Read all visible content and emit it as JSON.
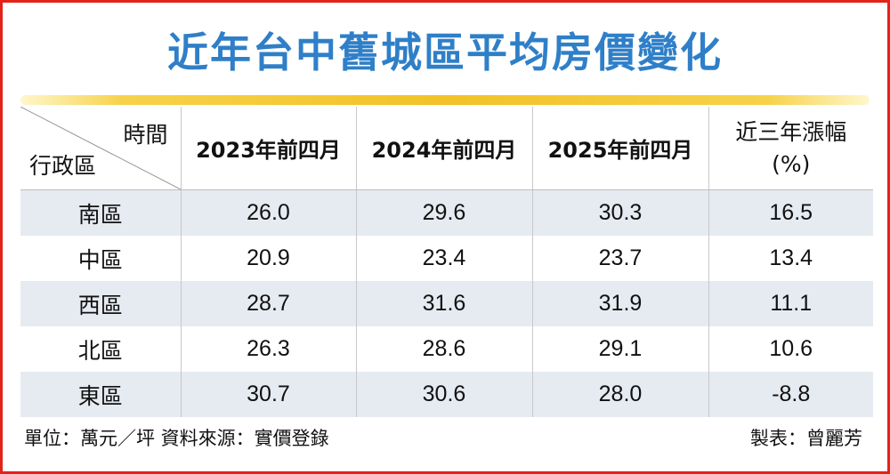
{
  "header": {
    "title": "近年台中舊城區平均房價變化"
  },
  "chart_data": {
    "type": "table",
    "title": "近年台中舊城區平均房價變化",
    "corner_top": "時間",
    "corner_bottom": "行政區",
    "columns": [
      "2023年前四月",
      "2024年前四月",
      "2025年前四月",
      "近三年漲幅",
      "(%)"
    ],
    "rows": [
      {
        "district": "南區",
        "values": [
          "26.0",
          "29.6",
          "30.3",
          "16.5"
        ]
      },
      {
        "district": "中區",
        "values": [
          "20.9",
          "23.4",
          "23.7",
          "13.4"
        ]
      },
      {
        "district": "西區",
        "values": [
          "28.7",
          "31.6",
          "31.9",
          "11.1"
        ]
      },
      {
        "district": "北區",
        "values": [
          "26.3",
          "28.6",
          "29.1",
          "10.6"
        ]
      },
      {
        "district": "東區",
        "values": [
          "30.7",
          "30.6",
          "28.0",
          "-8.8"
        ]
      }
    ]
  },
  "footer": {
    "source": "單位：萬元／坪  資料來源：實價登錄",
    "credit": "製表：曾麗芳"
  }
}
